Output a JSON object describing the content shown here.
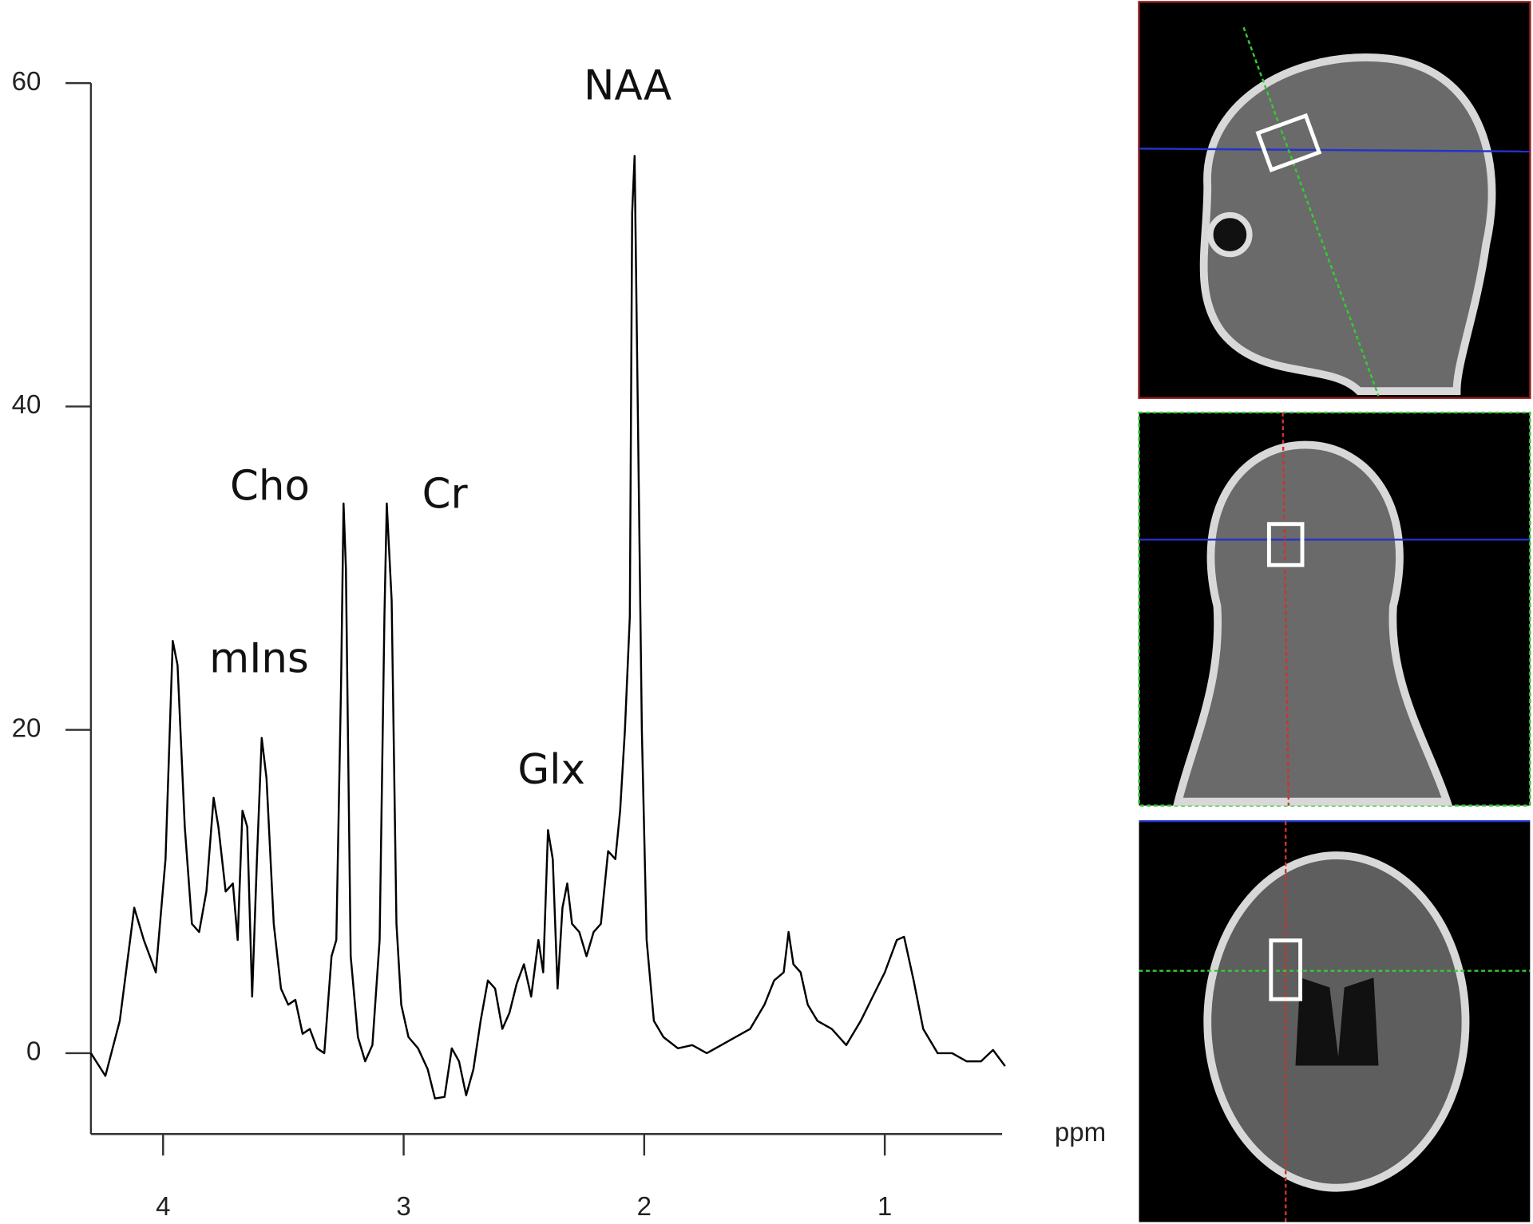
{
  "chart_data": {
    "type": "line",
    "x_label": "ppm",
    "annotations": [
      "NAA",
      "Cho",
      "Cr",
      "mIns",
      "Glx"
    ],
    "xlim": [
      4.3,
      0.5
    ],
    "xticks": [
      4,
      3,
      2,
      1
    ],
    "ylim": [
      -5,
      60
    ],
    "yticks": [
      0,
      20,
      40,
      60
    ],
    "color": "#000000",
    "x": [
      4.3,
      4.24,
      4.18,
      4.12,
      4.08,
      4.03,
      3.99,
      3.96,
      3.94,
      3.91,
      3.88,
      3.85,
      3.82,
      3.79,
      3.77,
      3.74,
      3.71,
      3.69,
      3.67,
      3.65,
      3.63,
      3.61,
      3.59,
      3.57,
      3.54,
      3.51,
      3.48,
      3.45,
      3.42,
      3.39,
      3.36,
      3.33,
      3.3,
      3.28,
      3.26,
      3.25,
      3.24,
      3.22,
      3.19,
      3.16,
      3.13,
      3.1,
      3.08,
      3.07,
      3.05,
      3.03,
      3.01,
      2.98,
      2.94,
      2.9,
      2.87,
      2.83,
      2.8,
      2.77,
      2.74,
      2.71,
      2.68,
      2.65,
      2.62,
      2.59,
      2.56,
      2.53,
      2.5,
      2.47,
      2.44,
      2.42,
      2.4,
      2.38,
      2.36,
      2.34,
      2.32,
      2.3,
      2.27,
      2.24,
      2.21,
      2.18,
      2.15,
      2.12,
      2.1,
      2.08,
      2.06,
      2.05,
      2.04,
      2.03,
      2.01,
      1.99,
      1.96,
      1.92,
      1.86,
      1.8,
      1.74,
      1.68,
      1.62,
      1.56,
      1.5,
      1.46,
      1.42,
      1.4,
      1.38,
      1.35,
      1.32,
      1.28,
      1.22,
      1.16,
      1.1,
      1.05,
      1.0,
      0.95,
      0.92,
      0.88,
      0.84,
      0.78,
      0.72,
      0.66,
      0.6,
      0.55,
      0.5
    ],
    "values": [
      0,
      -1.4,
      2,
      9,
      7,
      5,
      12,
      25.5,
      24,
      14,
      8,
      7.5,
      10,
      15.8,
      14,
      10,
      10.5,
      7,
      15,
      14,
      3.5,
      12,
      19.5,
      17,
      8,
      4,
      3,
      3.3,
      1.2,
      1.5,
      0.3,
      0,
      6,
      7,
      23,
      34,
      30,
      6,
      1,
      -0.5,
      0.5,
      7,
      27,
      34,
      28,
      8,
      3,
      1,
      0.3,
      -1,
      -2.8,
      -2.7,
      0.3,
      -0.5,
      -2.6,
      -1,
      2,
      4.5,
      4,
      1.5,
      2.5,
      4.3,
      5.5,
      3.5,
      7,
      5,
      13.8,
      12,
      4,
      9,
      10.5,
      8,
      7.5,
      6,
      7.5,
      8,
      12.5,
      12,
      15,
      20,
      27,
      52,
      55.5,
      44,
      20,
      7,
      2,
      1,
      0.3,
      0.5,
      0,
      0.5,
      1,
      1.5,
      3,
      4.5,
      5,
      7.5,
      5.5,
      5,
      3,
      2,
      1.5,
      0.5,
      2,
      3.5,
      5,
      7,
      7.2,
      4.5,
      1.5,
      0,
      0,
      -0.5,
      -0.5,
      0.2,
      -0.8
    ]
  }
}
